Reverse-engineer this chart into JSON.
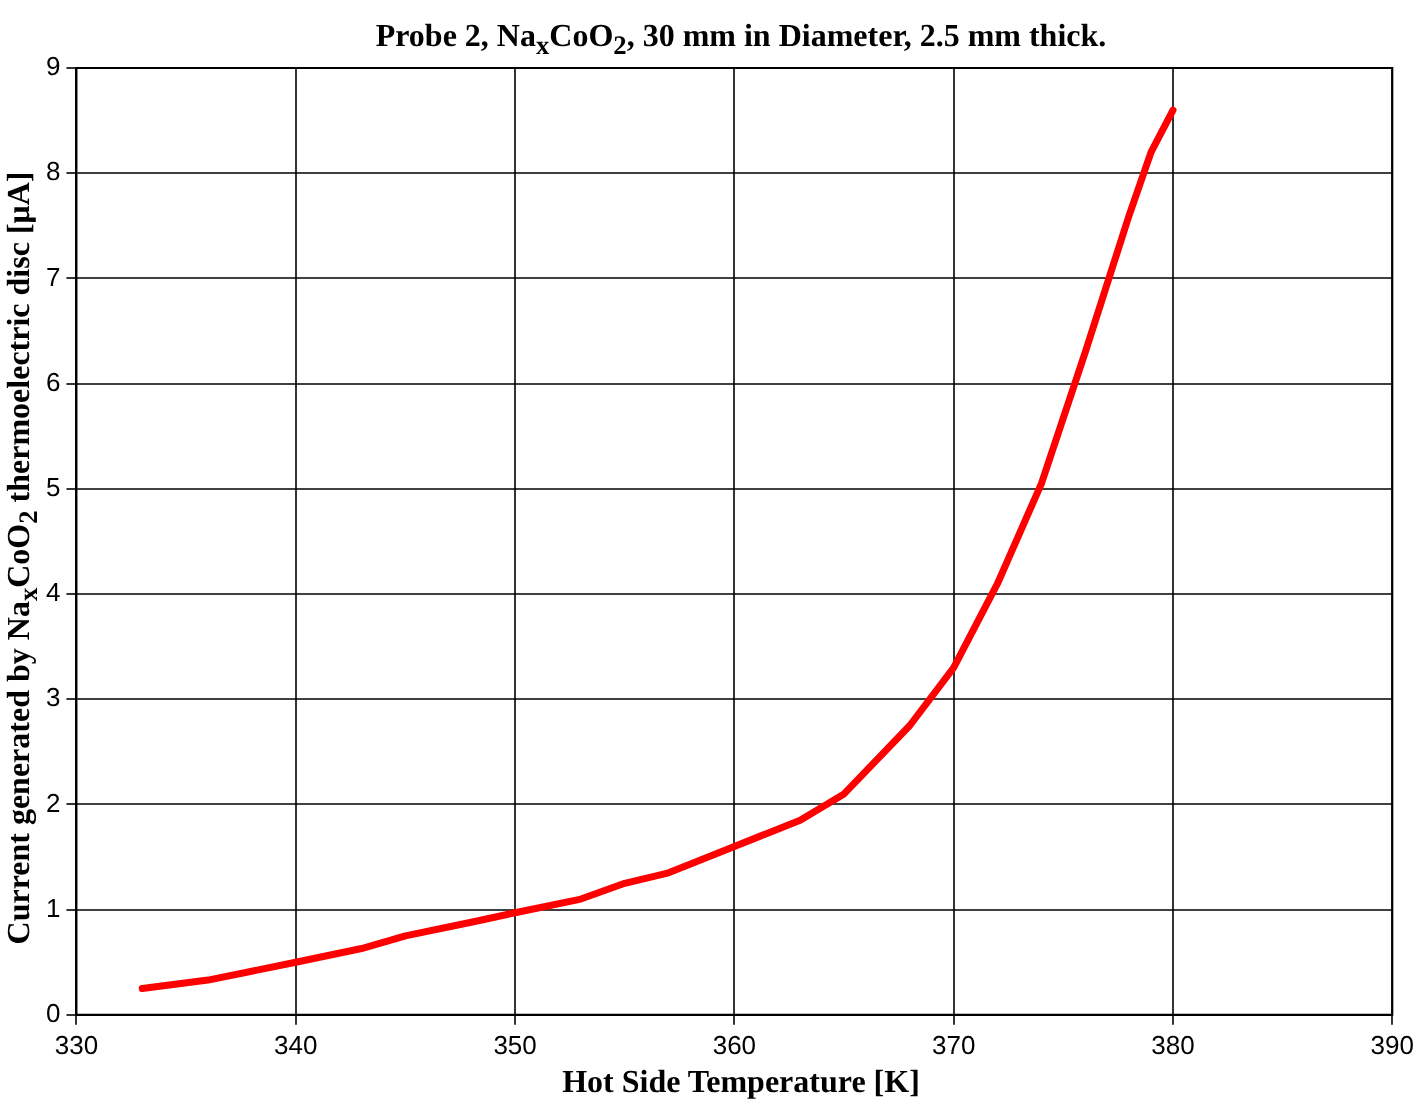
{
  "chart_data": {
    "type": "line",
    "title": "Probe 2, Na$_{x}$CoO$_{2}$, 30 mm in Diameter, 2.5 mm thick.",
    "xlabel": "Hot Side Temperature [K]",
    "ylabel": "Current generated by Na$_{x}$CoO$_{2}$ thermoelectric disc  [μA]",
    "series": [
      {
        "color": "#ff0000",
        "x": [
          333,
          336,
          340,
          343,
          345,
          348,
          350,
          353,
          355,
          357,
          360,
          363,
          365,
          368,
          370,
          372,
          374,
          376,
          378,
          379,
          380
        ],
        "values": [
          0.25,
          0.33,
          0.5,
          0.63,
          0.75,
          0.88,
          0.97,
          1.1,
          1.25,
          1.35,
          1.6,
          1.85,
          2.1,
          2.75,
          3.3,
          4.1,
          5.05,
          6.3,
          7.6,
          8.2,
          8.6
        ]
      }
    ],
    "xlim": [
      330,
      390
    ],
    "xticks": [
      330,
      340,
      350,
      360,
      370,
      380,
      390
    ],
    "ylim": [
      0,
      9
    ],
    "yticks": [
      0,
      1,
      2,
      3,
      4,
      5,
      6,
      7,
      8,
      9
    ],
    "grid": true,
    "legend": false,
    "marker": "none",
    "line_style": "solid"
  }
}
